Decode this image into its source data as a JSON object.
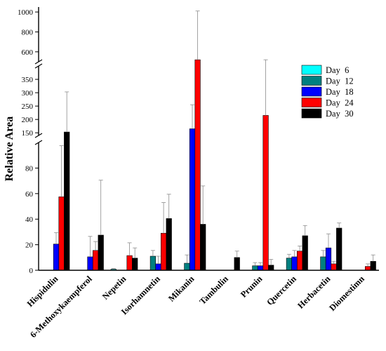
{
  "chart_data": {
    "type": "bar",
    "ylabel": "Relative Area",
    "xlabel": "",
    "title": "",
    "y_axis_breaks": [
      [
        100,
        140
      ],
      [
        400,
        500
      ]
    ],
    "segments": [
      {
        "range": [
          0,
          100
        ],
        "ticks": [
          0,
          20,
          40,
          60,
          80
        ]
      },
      {
        "range": [
          140,
          400
        ],
        "ticks": [
          150,
          200,
          250,
          300,
          350
        ]
      },
      {
        "range": [
          500,
          1050
        ],
        "ticks": [
          600,
          800,
          1000
        ]
      }
    ],
    "grid": false,
    "legend_position": "top-right",
    "categories": [
      "Hispidulin",
      "6-Methoxykaempferol",
      "Nepetin",
      "Isorhamnetin",
      "Mikanin",
      "Tambulin",
      "Prunin",
      "Quercetin",
      "Herbacetin",
      "Diomestimn"
    ],
    "series": [
      {
        "name": "Day  6",
        "color": "#00ffff",
        "values": [
          0,
          0,
          0.8,
          0,
          0,
          0,
          0,
          0,
          0,
          0
        ],
        "errors": [
          0,
          0,
          0.6,
          0,
          0,
          0,
          0,
          0,
          0,
          0
        ]
      },
      {
        "name": "Day  12",
        "color": "#008080",
        "values": [
          0,
          0,
          0,
          11,
          5.5,
          0,
          3.5,
          9.5,
          10.5,
          0
        ],
        "errors": [
          0,
          0,
          0,
          4.5,
          6.5,
          0,
          2.5,
          3,
          5,
          0
        ]
      },
      {
        "name": "Day  18",
        "color": "#0000ff",
        "values": [
          20.5,
          10.5,
          0,
          5,
          165,
          0,
          3.5,
          10.5,
          17.5,
          0
        ],
        "errors": [
          9,
          16,
          0,
          6,
          90,
          0,
          2.5,
          5,
          11,
          0
        ]
      },
      {
        "name": "Day  24",
        "color": "#ff0000",
        "values": [
          57.5,
          15.5,
          11.5,
          29,
          520,
          0,
          215,
          15,
          5,
          3
        ],
        "errors": [
          40,
          7,
          10,
          24,
          490,
          0,
          305,
          4,
          2,
          2
        ]
      },
      {
        "name": "Day  30",
        "color": "#000000",
        "values": [
          153,
          27.5,
          9.5,
          40.5,
          36,
          10,
          4,
          27,
          33,
          7
        ],
        "errors": [
          150,
          43,
          8,
          19,
          30,
          5,
          4.5,
          8,
          4,
          5
        ]
      }
    ]
  }
}
